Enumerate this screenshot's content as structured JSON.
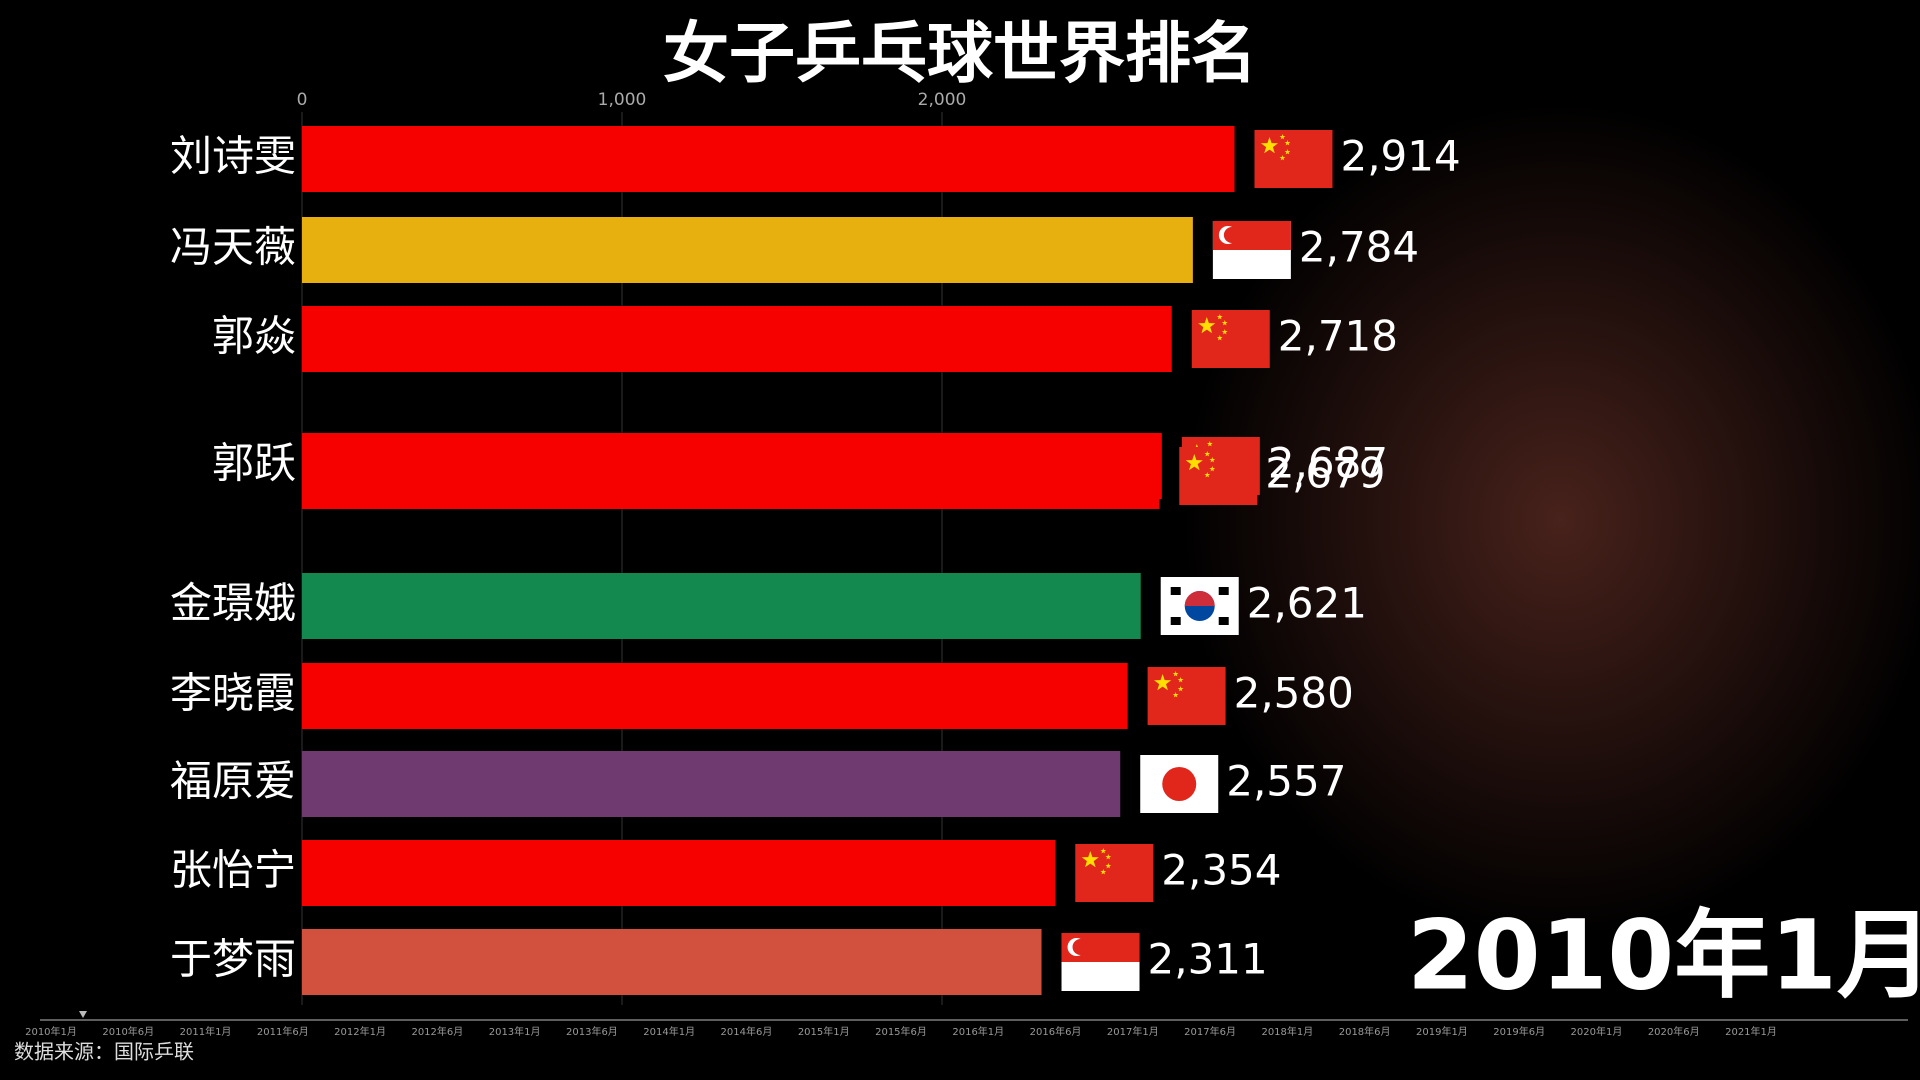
{
  "chart_data": {
    "type": "hbar",
    "title": "女子乒乓球世界排名",
    "period": "2010年1月",
    "source": "数据来源：国际乒联",
    "categories": [
      "刘诗雯",
      "冯天薇",
      "郭焱",
      "郭跃",
      null,
      "金璟娥",
      "李晓霞",
      "福原爱",
      "张怡宁",
      "于梦雨"
    ],
    "values": [
      2914,
      2784,
      2718,
      2687,
      2679,
      2621,
      2580,
      2557,
      2354,
      2311
    ],
    "value_labels": [
      "2,914",
      "2,784",
      "2,718",
      "2,687",
      "2,679",
      "2,621",
      "2,580",
      "2,557",
      "2,354",
      "2,311"
    ],
    "colors": [
      "#f70000",
      "#e8b00f",
      "#f70000",
      "#f70000",
      "#f70000",
      "#13894f",
      "#f70000",
      "#6e3a6f",
      "#f70000",
      "#d1513e"
    ],
    "flags": [
      "cn",
      "sg",
      "cn",
      "cn",
      "cn",
      "kr",
      "cn",
      "jp",
      "cn",
      "sg"
    ],
    "xlim": [
      0,
      3000
    ],
    "xticks": [
      0,
      {
        "value": 1000,
        "label": "1,000"
      },
      {
        "value": 2000,
        "label": "2,000"
      }
    ],
    "grid": true,
    "timeline": [
      "2010年1月",
      "2010年6月",
      "2011年1月",
      "2011年6月",
      "2012年1月",
      "2012年6月",
      "2013年1月",
      "2013年6月",
      "2014年1月",
      "2014年6月",
      "2015年1月",
      "2015年6月",
      "2016年1月",
      "2016年6月",
      "2017年1月",
      "2017年6月",
      "2018年1月",
      "2018年6月",
      "2019年1月",
      "2019年6月",
      "2020年1月",
      "2020年6月",
      "2021年1月"
    ]
  }
}
